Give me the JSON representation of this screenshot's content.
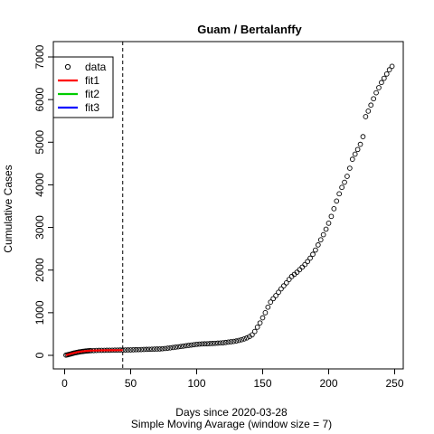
{
  "chart_data": {
    "type": "scatter",
    "title": "Guam / Bertalanffy",
    "xlabel": "Days since 2020-03-28",
    "subtitle": "Simple Moving Avarage (window size = 7)",
    "ylabel": "Cumulative Cases",
    "xlim": [
      0,
      250
    ],
    "ylim": [
      0,
      7000
    ],
    "x_ticks": [
      0,
      50,
      100,
      150,
      200,
      250
    ],
    "y_ticks": [
      0,
      1000,
      2000,
      3000,
      4000,
      5000,
      6000,
      7000
    ],
    "vline_x": 44,
    "legend": {
      "position": "top-left",
      "entries": [
        {
          "label": "data",
          "symbol": "circle",
          "color": "#000000"
        },
        {
          "label": "fit1",
          "symbol": "line",
          "color": "#ff0000"
        },
        {
          "label": "fit2",
          "symbol": "line",
          "color": "#00cd00"
        },
        {
          "label": "fit3",
          "symbol": "line",
          "color": "#0000ff"
        }
      ]
    },
    "series": [
      {
        "name": "data",
        "color": "#000000",
        "points": [
          [
            1,
            5
          ],
          [
            2,
            12
          ],
          [
            3,
            20
          ],
          [
            4,
            28
          ],
          [
            5,
            36
          ],
          [
            6,
            45
          ],
          [
            7,
            53
          ],
          [
            8,
            60
          ],
          [
            9,
            67
          ],
          [
            10,
            73
          ],
          [
            11,
            79
          ],
          [
            12,
            84
          ],
          [
            13,
            89
          ],
          [
            14,
            93
          ],
          [
            15,
            97
          ],
          [
            16,
            101
          ],
          [
            17,
            104
          ],
          [
            18,
            106
          ],
          [
            19,
            108
          ],
          [
            20,
            110
          ],
          [
            22,
            112
          ],
          [
            24,
            114
          ],
          [
            26,
            116
          ],
          [
            28,
            117
          ],
          [
            30,
            118
          ],
          [
            32,
            119
          ],
          [
            34,
            120
          ],
          [
            36,
            121
          ],
          [
            38,
            122
          ],
          [
            40,
            123
          ],
          [
            42,
            124
          ],
          [
            44,
            125
          ],
          [
            46,
            126
          ],
          [
            48,
            127
          ],
          [
            50,
            128
          ],
          [
            52,
            130
          ],
          [
            54,
            132
          ],
          [
            56,
            134
          ],
          [
            58,
            136
          ],
          [
            60,
            138
          ],
          [
            62,
            140
          ],
          [
            64,
            142
          ],
          [
            66,
            144
          ],
          [
            68,
            146
          ],
          [
            70,
            148
          ],
          [
            72,
            150
          ],
          [
            74,
            155
          ],
          [
            76,
            160
          ],
          [
            78,
            167
          ],
          [
            80,
            175
          ],
          [
            82,
            183
          ],
          [
            84,
            192
          ],
          [
            86,
            200
          ],
          [
            88,
            208
          ],
          [
            90,
            216
          ],
          [
            92,
            225
          ],
          [
            94,
            233
          ],
          [
            96,
            242
          ],
          [
            98,
            250
          ],
          [
            100,
            258
          ],
          [
            102,
            264
          ],
          [
            104,
            268
          ],
          [
            106,
            270
          ],
          [
            108,
            272
          ],
          [
            110,
            275
          ],
          [
            112,
            278
          ],
          [
            114,
            282
          ],
          [
            116,
            286
          ],
          [
            118,
            290
          ],
          [
            120,
            295
          ],
          [
            122,
            302
          ],
          [
            124,
            310
          ],
          [
            126,
            318
          ],
          [
            128,
            326
          ],
          [
            130,
            336
          ],
          [
            132,
            350
          ],
          [
            134,
            366
          ],
          [
            136,
            385
          ],
          [
            138,
            408
          ],
          [
            140,
            440
          ],
          [
            142,
            480
          ],
          [
            144,
            560
          ],
          [
            146,
            660
          ],
          [
            148,
            760
          ],
          [
            150,
            880
          ],
          [
            152,
            1000
          ],
          [
            154,
            1130
          ],
          [
            156,
            1250
          ],
          [
            158,
            1330
          ],
          [
            160,
            1400
          ],
          [
            162,
            1480
          ],
          [
            164,
            1560
          ],
          [
            166,
            1630
          ],
          [
            168,
            1700
          ],
          [
            170,
            1780
          ],
          [
            172,
            1850
          ],
          [
            174,
            1900
          ],
          [
            176,
            1950
          ],
          [
            178,
            2010
          ],
          [
            180,
            2070
          ],
          [
            182,
            2130
          ],
          [
            184,
            2200
          ],
          [
            186,
            2280
          ],
          [
            188,
            2370
          ],
          [
            190,
            2470
          ],
          [
            192,
            2590
          ],
          [
            194,
            2710
          ],
          [
            196,
            2830
          ],
          [
            198,
            2960
          ],
          [
            200,
            3100
          ],
          [
            202,
            3260
          ],
          [
            204,
            3440
          ],
          [
            206,
            3620
          ],
          [
            208,
            3790
          ],
          [
            210,
            3940
          ],
          [
            212,
            4060
          ],
          [
            214,
            4200
          ],
          [
            216,
            4390
          ],
          [
            218,
            4600
          ],
          [
            220,
            4720
          ],
          [
            222,
            4830
          ],
          [
            224,
            4950
          ],
          [
            226,
            5130
          ],
          [
            228,
            5600
          ],
          [
            230,
            5730
          ],
          [
            232,
            5870
          ],
          [
            234,
            6020
          ],
          [
            236,
            6160
          ],
          [
            238,
            6280
          ],
          [
            240,
            6400
          ],
          [
            242,
            6500
          ],
          [
            244,
            6600
          ],
          [
            246,
            6700
          ],
          [
            248,
            6780
          ]
        ]
      },
      {
        "name": "fit1",
        "color": "#ff0000",
        "points": [
          [
            1,
            5
          ],
          [
            3,
            22
          ],
          [
            5,
            40
          ],
          [
            7,
            56
          ],
          [
            9,
            70
          ],
          [
            11,
            82
          ],
          [
            13,
            92
          ],
          [
            15,
            100
          ],
          [
            17,
            105
          ],
          [
            19,
            109
          ],
          [
            21,
            112
          ],
          [
            24,
            114
          ],
          [
            28,
            116
          ],
          [
            32,
            118
          ],
          [
            36,
            119
          ],
          [
            40,
            120
          ],
          [
            44,
            121
          ]
        ]
      }
    ]
  }
}
